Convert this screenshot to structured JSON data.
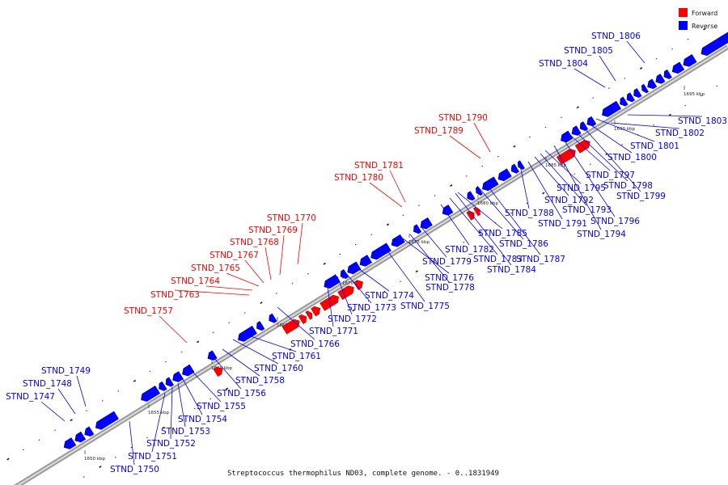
{
  "caption": "Streptococcus thermophilus ND03, complete genome. - 0..1831949",
  "legend": [
    {
      "label": "Forward",
      "color": "#ff0000"
    },
    {
      "label": "Reverse",
      "color": "#0000ff"
    }
  ],
  "colors": {
    "forward": "#ff0000",
    "reverse": "#0000ff",
    "axis": "#888888"
  },
  "ticks": [
    "1650 kbp",
    "1655 kbp",
    "1660 kbp",
    "1665 kbp",
    "1670 kbp",
    "1675 kbp",
    "1680 kbp",
    "1685 kbp",
    "1690 kbp",
    "1695 kbp"
  ],
  "genes": [
    {
      "name": "STND_1747",
      "strand": "reverse"
    },
    {
      "name": "STND_1748",
      "strand": "reverse"
    },
    {
      "name": "STND_1749",
      "strand": "reverse"
    },
    {
      "name": "STND_1750",
      "strand": "reverse"
    },
    {
      "name": "STND_1751",
      "strand": "reverse"
    },
    {
      "name": "STND_1752",
      "strand": "reverse"
    },
    {
      "name": "STND_1753",
      "strand": "reverse"
    },
    {
      "name": "STND_1754",
      "strand": "reverse"
    },
    {
      "name": "STND_1755",
      "strand": "reverse"
    },
    {
      "name": "STND_1756",
      "strand": "reverse"
    },
    {
      "name": "STND_1757",
      "strand": "forward"
    },
    {
      "name": "STND_1758",
      "strand": "reverse"
    },
    {
      "name": "STND_1760",
      "strand": "reverse"
    },
    {
      "name": "STND_1761",
      "strand": "reverse"
    },
    {
      "name": "STND_1763",
      "strand": "forward"
    },
    {
      "name": "STND_1764",
      "strand": "forward"
    },
    {
      "name": "STND_1765",
      "strand": "forward"
    },
    {
      "name": "STND_1766",
      "strand": "reverse"
    },
    {
      "name": "STND_1767",
      "strand": "forward"
    },
    {
      "name": "STND_1768",
      "strand": "forward"
    },
    {
      "name": "STND_1769",
      "strand": "forward"
    },
    {
      "name": "STND_1770",
      "strand": "forward"
    },
    {
      "name": "STND_1771",
      "strand": "reverse"
    },
    {
      "name": "STND_1772",
      "strand": "reverse"
    },
    {
      "name": "STND_1773",
      "strand": "reverse"
    },
    {
      "name": "STND_1774",
      "strand": "reverse"
    },
    {
      "name": "STND_1775",
      "strand": "reverse"
    },
    {
      "name": "STND_1776",
      "strand": "reverse"
    },
    {
      "name": "STND_1778",
      "strand": "reverse"
    },
    {
      "name": "STND_1779",
      "strand": "reverse"
    },
    {
      "name": "STND_1780",
      "strand": "forward"
    },
    {
      "name": "STND_1781",
      "strand": "forward"
    },
    {
      "name": "STND_1782",
      "strand": "reverse"
    },
    {
      "name": "STND_1783",
      "strand": "reverse"
    },
    {
      "name": "STND_1784",
      "strand": "reverse"
    },
    {
      "name": "STND_1785",
      "strand": "reverse"
    },
    {
      "name": "STND_1786",
      "strand": "reverse"
    },
    {
      "name": "STND_1787",
      "strand": "reverse"
    },
    {
      "name": "STND_1788",
      "strand": "reverse"
    },
    {
      "name": "STND_1789",
      "strand": "forward"
    },
    {
      "name": "STND_1790",
      "strand": "forward"
    },
    {
      "name": "STND_1791",
      "strand": "reverse"
    },
    {
      "name": "STND_1792",
      "strand": "reverse"
    },
    {
      "name": "STND_1793",
      "strand": "reverse"
    },
    {
      "name": "STND_1794",
      "strand": "reverse"
    },
    {
      "name": "STND_1795",
      "strand": "reverse"
    },
    {
      "name": "STND_1796",
      "strand": "reverse"
    },
    {
      "name": "STND_1797",
      "strand": "reverse"
    },
    {
      "name": "STND_1798",
      "strand": "reverse"
    },
    {
      "name": "STND_1799",
      "strand": "reverse"
    },
    {
      "name": "STND_1800",
      "strand": "reverse"
    },
    {
      "name": "STND_1801",
      "strand": "reverse"
    },
    {
      "name": "STND_1802",
      "strand": "reverse"
    },
    {
      "name": "STND_1803",
      "strand": "reverse"
    },
    {
      "name": "STND_1804",
      "strand": "reverse"
    },
    {
      "name": "STND_1805",
      "strand": "reverse"
    },
    {
      "name": "STND_1806",
      "strand": "reverse"
    }
  ]
}
